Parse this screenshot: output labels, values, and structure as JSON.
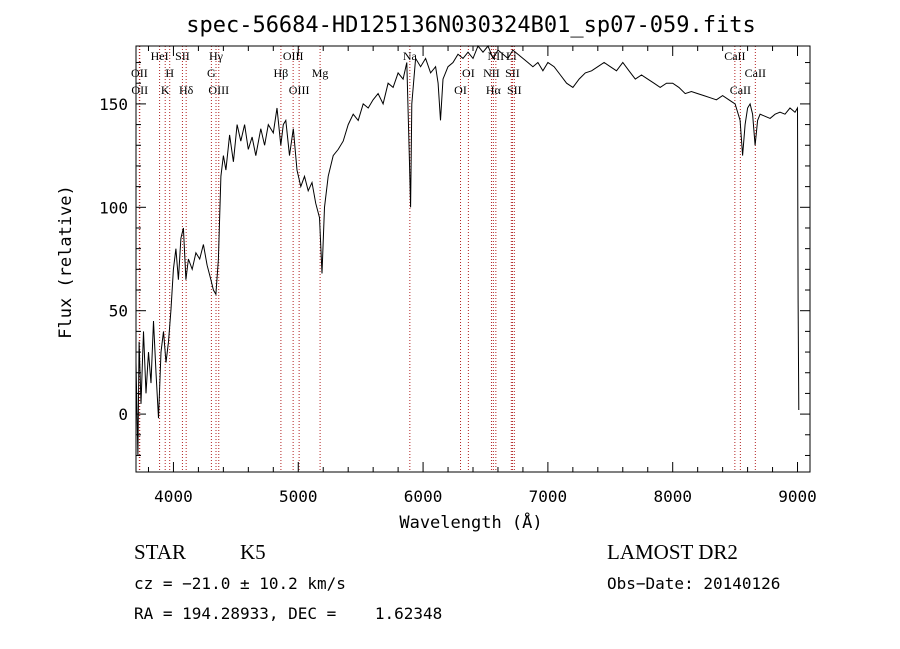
{
  "chart_data": {
    "type": "line",
    "title": "spec-56684-HD125136N030324B01_sp07-059.fits",
    "xlabel": "Wavelength (Å)",
    "ylabel": "Flux (relative)",
    "xlim": [
      3700,
      9100
    ],
    "ylim": [
      -28,
      178
    ],
    "xticks": [
      4000,
      5000,
      6000,
      7000,
      8000,
      9000
    ],
    "yticks": [
      0,
      50,
      100,
      150
    ],
    "grid": false,
    "series": [
      {
        "color": "#000000",
        "points": [
          [
            3700,
            25
          ],
          [
            3715,
            -20
          ],
          [
            3725,
            35
          ],
          [
            3740,
            5
          ],
          [
            3760,
            40
          ],
          [
            3780,
            10
          ],
          [
            3800,
            30
          ],
          [
            3820,
            15
          ],
          [
            3840,
            45
          ],
          [
            3860,
            20
          ],
          [
            3880,
            -2
          ],
          [
            3900,
            30
          ],
          [
            3920,
            40
          ],
          [
            3940,
            25
          ],
          [
            3960,
            35
          ],
          [
            3980,
            50
          ],
          [
            4000,
            70
          ],
          [
            4020,
            80
          ],
          [
            4040,
            65
          ],
          [
            4060,
            85
          ],
          [
            4080,
            90
          ],
          [
            4100,
            65
          ],
          [
            4120,
            75
          ],
          [
            4150,
            70
          ],
          [
            4180,
            78
          ],
          [
            4210,
            75
          ],
          [
            4240,
            82
          ],
          [
            4270,
            72
          ],
          [
            4300,
            65
          ],
          [
            4320,
            60
          ],
          [
            4340,
            58
          ],
          [
            4360,
            75
          ],
          [
            4380,
            115
          ],
          [
            4400,
            125
          ],
          [
            4420,
            118
          ],
          [
            4450,
            135
          ],
          [
            4480,
            122
          ],
          [
            4510,
            140
          ],
          [
            4540,
            132
          ],
          [
            4570,
            140
          ],
          [
            4600,
            128
          ],
          [
            4630,
            134
          ],
          [
            4660,
            125
          ],
          [
            4700,
            138
          ],
          [
            4730,
            130
          ],
          [
            4760,
            140
          ],
          [
            4800,
            136
          ],
          [
            4830,
            148
          ],
          [
            4860,
            130
          ],
          [
            4880,
            140
          ],
          [
            4900,
            142
          ],
          [
            4930,
            125
          ],
          [
            4960,
            138
          ],
          [
            4990,
            118
          ],
          [
            5020,
            110
          ],
          [
            5050,
            115
          ],
          [
            5080,
            108
          ],
          [
            5110,
            112
          ],
          [
            5140,
            102
          ],
          [
            5170,
            95
          ],
          [
            5190,
            68
          ],
          [
            5210,
            100
          ],
          [
            5240,
            115
          ],
          [
            5280,
            125
          ],
          [
            5320,
            128
          ],
          [
            5360,
            132
          ],
          [
            5400,
            140
          ],
          [
            5440,
            145
          ],
          [
            5480,
            142
          ],
          [
            5520,
            150
          ],
          [
            5560,
            148
          ],
          [
            5600,
            152
          ],
          [
            5640,
            155
          ],
          [
            5680,
            150
          ],
          [
            5720,
            160
          ],
          [
            5760,
            158
          ],
          [
            5800,
            165
          ],
          [
            5840,
            162
          ],
          [
            5870,
            170
          ],
          [
            5890,
            125
          ],
          [
            5900,
            100
          ],
          [
            5910,
            150
          ],
          [
            5940,
            172
          ],
          [
            5980,
            168
          ],
          [
            6020,
            172
          ],
          [
            6060,
            165
          ],
          [
            6100,
            168
          ],
          [
            6120,
            160
          ],
          [
            6140,
            142
          ],
          [
            6160,
            162
          ],
          [
            6200,
            168
          ],
          [
            6240,
            170
          ],
          [
            6280,
            174
          ],
          [
            6320,
            172
          ],
          [
            6360,
            175
          ],
          [
            6400,
            172
          ],
          [
            6440,
            178
          ],
          [
            6480,
            175
          ],
          [
            6520,
            178
          ],
          [
            6560,
            172
          ],
          [
            6600,
            176
          ],
          [
            6640,
            174
          ],
          [
            6680,
            172
          ],
          [
            6720,
            176
          ],
          [
            6760,
            174
          ],
          [
            6800,
            172
          ],
          [
            6840,
            170
          ],
          [
            6880,
            168
          ],
          [
            6920,
            170
          ],
          [
            6960,
            166
          ],
          [
            7000,
            170
          ],
          [
            7050,
            168
          ],
          [
            7100,
            164
          ],
          [
            7150,
            160
          ],
          [
            7200,
            158
          ],
          [
            7250,
            162
          ],
          [
            7300,
            165
          ],
          [
            7350,
            166
          ],
          [
            7400,
            168
          ],
          [
            7450,
            170
          ],
          [
            7500,
            168
          ],
          [
            7550,
            166
          ],
          [
            7600,
            170
          ],
          [
            7650,
            166
          ],
          [
            7700,
            162
          ],
          [
            7750,
            164
          ],
          [
            7800,
            162
          ],
          [
            7850,
            160
          ],
          [
            7900,
            158
          ],
          [
            7950,
            160
          ],
          [
            8000,
            160
          ],
          [
            8050,
            158
          ],
          [
            8100,
            155
          ],
          [
            8150,
            156
          ],
          [
            8200,
            155
          ],
          [
            8250,
            154
          ],
          [
            8300,
            153
          ],
          [
            8350,
            152
          ],
          [
            8400,
            154
          ],
          [
            8450,
            152
          ],
          [
            8500,
            150
          ],
          [
            8540,
            142
          ],
          [
            8560,
            125
          ],
          [
            8580,
            140
          ],
          [
            8600,
            148
          ],
          [
            8620,
            150
          ],
          [
            8640,
            145
          ],
          [
            8660,
            130
          ],
          [
            8680,
            142
          ],
          [
            8700,
            145
          ],
          [
            8740,
            144
          ],
          [
            8780,
            143
          ],
          [
            8820,
            145
          ],
          [
            8860,
            146
          ],
          [
            8900,
            145
          ],
          [
            8940,
            148
          ],
          [
            8980,
            146
          ],
          [
            9000,
            148
          ],
          [
            9005,
            55
          ],
          [
            9010,
            2
          ]
        ]
      }
    ],
    "lines": [
      {
        "wavelength": 3727,
        "label": "OII",
        "row": 1
      },
      {
        "wavelength": 3730,
        "label": "OII",
        "row": 2
      },
      {
        "wavelength": 3889,
        "label": "HeI",
        "row": 0
      },
      {
        "wavelength": 3934,
        "label": "K",
        "row": 2
      },
      {
        "wavelength": 3970,
        "label": "H",
        "row": 1
      },
      {
        "wavelength": 4072,
        "label": "SII",
        "row": 0
      },
      {
        "wavelength": 4102,
        "label": "Hδ",
        "row": 2
      },
      {
        "wavelength": 4304,
        "label": "G",
        "row": 1
      },
      {
        "wavelength": 4341,
        "label": "Hγ",
        "row": 0
      },
      {
        "wavelength": 4363,
        "label": "OIII",
        "row": 2
      },
      {
        "wavelength": 4861,
        "label": "Hβ",
        "row": 1
      },
      {
        "wavelength": 4959,
        "label": "OIII",
        "row": 0
      },
      {
        "wavelength": 5007,
        "label": "OIII",
        "row": 2
      },
      {
        "wavelength": 5175,
        "label": "Mg",
        "row": 1
      },
      {
        "wavelength": 5894,
        "label": "Na",
        "row": 0
      },
      {
        "wavelength": 6300,
        "label": "OI",
        "row": 2
      },
      {
        "wavelength": 6363,
        "label": "OI",
        "row": 1
      },
      {
        "wavelength": 6548,
        "label": "NII",
        "row": 1
      },
      {
        "wavelength": 6563,
        "label": "Hα",
        "row": 2
      },
      {
        "wavelength": 6583,
        "label": "NII",
        "row": 0
      },
      {
        "wavelength": 6707,
        "label": "Li",
        "row": 0
      },
      {
        "wavelength": 6716,
        "label": "SII",
        "row": 1
      },
      {
        "wavelength": 6731,
        "label": "SII",
        "row": 2
      },
      {
        "wavelength": 8498,
        "label": "CaII",
        "row": 0
      },
      {
        "wavelength": 8542,
        "label": "CaII",
        "row": 2
      },
      {
        "wavelength": 8662,
        "label": "CaII",
        "row": 1
      }
    ]
  },
  "info": {
    "object_class": "STAR",
    "subclass": "K5",
    "survey": "LAMOST DR2",
    "redshift": "cz = −21.0 ± 10.2 km/s",
    "obs_date": "Obs−Date: 20140126",
    "coords": "RA = 194.28933, DEC =    1.62348"
  },
  "colors": {
    "spectrum": "#000000",
    "line_marker": "#b22222",
    "axes": "#000000"
  }
}
